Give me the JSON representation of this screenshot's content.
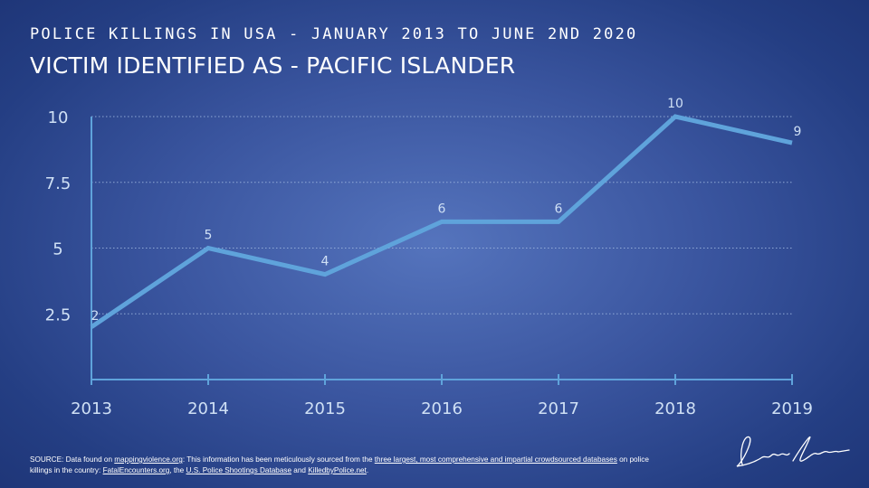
{
  "header": {
    "supertitle": "POLICE KILLINGS IN USA - JANUARY 2013 TO JUNE 2ND 2020",
    "title": "VICTIM IDENTIFIED AS - PACIFIC ISLANDER"
  },
  "chart_data": {
    "type": "line",
    "categories": [
      "2013",
      "2014",
      "2015",
      "2016",
      "2017",
      "2018",
      "2019"
    ],
    "series": [
      {
        "values": [
          2,
          5,
          4,
          6,
          6,
          10,
          9
        ]
      }
    ],
    "data_labels": [
      "2",
      "5",
      "4",
      "6",
      "6",
      "10",
      "9"
    ],
    "y_ticks": [
      {
        "value": 2.5,
        "label": "2.5"
      },
      {
        "value": 5,
        "label": "5"
      },
      {
        "value": 7.5,
        "label": "7.5"
      },
      {
        "value": 10,
        "label": "10"
      }
    ],
    "ylim": [
      0,
      10
    ],
    "grid": "horizontal dotted",
    "colors": {
      "line": "#5fa3db",
      "axis": "#5fa3db",
      "grid": "#9fb8e0",
      "tick_label": "#cfe0f5"
    }
  },
  "footer": {
    "source_prefix": "SOURCE: Data found on ",
    "link_1": "mappingviolence.org",
    "source_mid_1": ": This information has been meticulously sourced from the ",
    "link_2": "three largest, most comprehensive and impartial crowdsourced databases",
    "source_mid_2": " on police killings in the country: ",
    "link_3": "FatalEncounters.org",
    "source_mid_3": ", the ",
    "link_4": "U.S. Police Shootings Database",
    "source_mid_4": " and ",
    "link_5": "KilledbyPolice.net",
    "source_end": "."
  }
}
